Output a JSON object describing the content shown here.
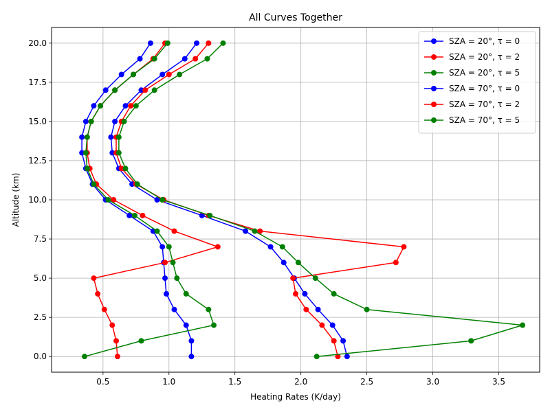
{
  "chart_data": {
    "type": "line",
    "title": "All Curves Together",
    "xlabel": "Heating Rates (K/day)",
    "ylabel": "Altitude (km)",
    "xlim": [
      0.11,
      3.81
    ],
    "ylim": [
      -1.0,
      21.0
    ],
    "xticks": [
      0.5,
      1.0,
      1.5,
      2.0,
      2.5,
      3.0,
      3.5
    ],
    "xtick_labels": [
      "0.5",
      "1.0",
      "1.5",
      "2.0",
      "2.5",
      "3.0",
      "3.5"
    ],
    "yticks": [
      0,
      2.5,
      5,
      7.5,
      10,
      12.5,
      15,
      17.5,
      20
    ],
    "ytick_labels": [
      "0.0",
      "2.5",
      "5.0",
      "7.5",
      "10.0",
      "12.5",
      "15.0",
      "17.5",
      "20.0"
    ],
    "grid": true,
    "legend_position": "upper-right",
    "altitudes": [
      0,
      1,
      2,
      3,
      4,
      5,
      6,
      7,
      8,
      9,
      10,
      11,
      12,
      13,
      14,
      15,
      16,
      17,
      18,
      19,
      20
    ],
    "series": [
      {
        "name": "SZA = 20°, τ = 0",
        "color": "#0000ff",
        "x": [
          1.17,
          1.17,
          1.13,
          1.04,
          0.98,
          0.97,
          0.96,
          0.95,
          0.88,
          0.7,
          0.52,
          0.42,
          0.37,
          0.34,
          0.34,
          0.37,
          0.43,
          0.52,
          0.64,
          0.78,
          0.86
        ]
      },
      {
        "name": "SZA = 20°, τ = 2",
        "color": "#ff0000",
        "x": [
          0.61,
          0.6,
          0.57,
          0.51,
          0.46,
          0.43,
          0.97,
          1.37,
          1.04,
          0.8,
          0.58,
          0.45,
          0.4,
          0.38,
          0.38,
          0.41,
          0.48,
          0.59,
          0.73,
          0.88,
          0.97
        ]
      },
      {
        "name": "SZA = 20°, τ = 5",
        "color": "#008000",
        "x": [
          0.36,
          0.79,
          1.34,
          1.3,
          1.13,
          1.06,
          1.03,
          1.0,
          0.91,
          0.74,
          0.54,
          0.43,
          0.38,
          0.37,
          0.38,
          0.41,
          0.48,
          0.59,
          0.73,
          0.89,
          0.99
        ]
      },
      {
        "name": "SZA = 70°, τ = 0",
        "color": "#0000ff",
        "x": [
          2.35,
          2.32,
          2.24,
          2.13,
          2.03,
          1.95,
          1.87,
          1.77,
          1.58,
          1.25,
          0.91,
          0.72,
          0.62,
          0.57,
          0.56,
          0.59,
          0.67,
          0.79,
          0.95,
          1.12,
          1.21
        ]
      },
      {
        "name": "SZA = 70°, τ = 2",
        "color": "#ff0000",
        "x": [
          2.28,
          2.25,
          2.16,
          2.04,
          1.96,
          1.94,
          2.72,
          2.78,
          1.69,
          1.3,
          0.96,
          0.75,
          0.64,
          0.6,
          0.6,
          0.64,
          0.71,
          0.82,
          1.0,
          1.2,
          1.3
        ]
      },
      {
        "name": "SZA = 70°, τ = 5",
        "color": "#008000",
        "x": [
          2.12,
          3.29,
          3.68,
          2.5,
          2.25,
          2.11,
          1.98,
          1.86,
          1.65,
          1.31,
          0.95,
          0.76,
          0.67,
          0.62,
          0.62,
          0.66,
          0.75,
          0.89,
          1.08,
          1.29,
          1.41
        ]
      }
    ]
  }
}
